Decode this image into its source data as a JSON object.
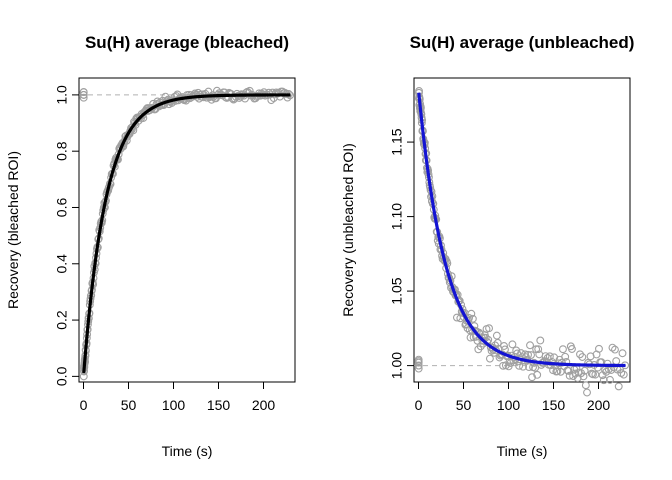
{
  "chart_data": [
    {
      "type": "scatter",
      "title": "Su(H) average (bleached)",
      "xlabel": "Time (s)",
      "ylabel": "Recovery (bleached ROI)",
      "xlim": [
        -5,
        235
      ],
      "ylim": [
        -0.02,
        1.06
      ],
      "xticks": [
        0,
        50,
        100,
        150,
        200
      ],
      "yticks": [
        0.0,
        0.2,
        0.4,
        0.6,
        0.8,
        1.0
      ],
      "ytick_labels": [
        "0.0",
        "0.2",
        "0.4",
        "0.6",
        "0.8",
        "1.0"
      ],
      "reference_line": 1.0,
      "prebleach_points": [
        1.0,
        1.01,
        1.0,
        0.99,
        1.0,
        1.01
      ],
      "fit": {
        "model": "1 - a*exp(-t/tau)",
        "a": 1.0,
        "tau": 25,
        "color": "#000000"
      },
      "points_color": "#a0a0a0",
      "grid": false
    },
    {
      "type": "scatter",
      "title": "Su(H) average (unbleached)",
      "xlabel": "Time (s)",
      "ylabel": "Recovery (unbleached ROI)",
      "xlim": [
        -5,
        235
      ],
      "ylim": [
        0.989,
        1.193
      ],
      "xticks": [
        0,
        50,
        100,
        150,
        200
      ],
      "yticks": [
        1.0,
        1.05,
        1.1,
        1.15
      ],
      "ytick_labels": [
        "1.00",
        "1.05",
        "1.10",
        "1.15"
      ],
      "reference_line": 1.0,
      "prebleach_points": [
        1.0,
        1.004,
        0.998,
        1.002,
        1.0,
        1.003
      ],
      "fit": {
        "model": "1 + a*exp(-t/tau)",
        "a": 0.185,
        "tau": 30,
        "color": "#1414d2"
      },
      "points_color": "#a0a0a0",
      "grid": false
    }
  ]
}
